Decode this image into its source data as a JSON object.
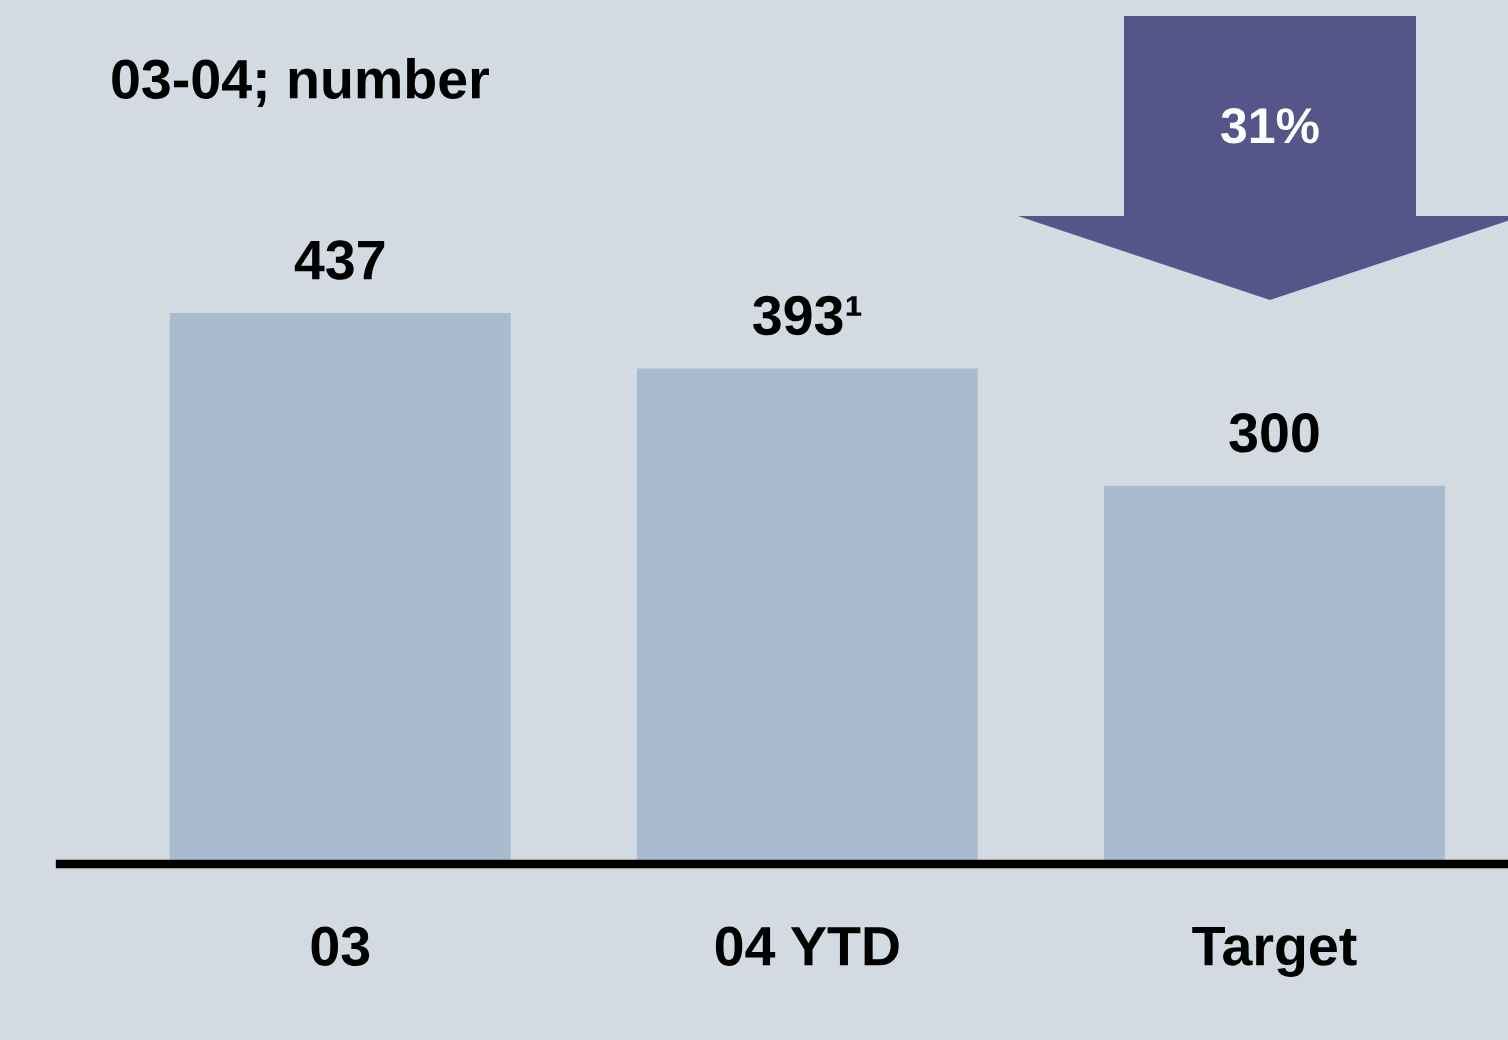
{
  "chart_data": {
    "type": "bar",
    "title": "03-04; number",
    "categories": [
      "03",
      "04 YTD",
      "Target"
    ],
    "values": [
      437,
      393,
      300
    ],
    "color": "#a9bccf",
    "value_labels": [
      "437",
      "393¹",
      "300"
    ],
    "annotations": [
      "31%"
    ],
    "grid": false,
    "legend": false
  }
}
